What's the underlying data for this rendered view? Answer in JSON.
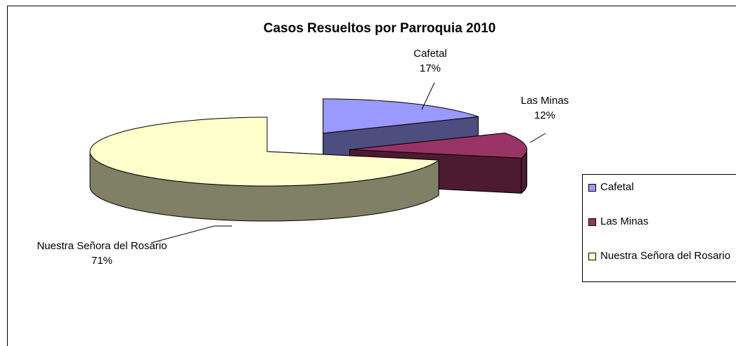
{
  "chart_data": {
    "type": "pie",
    "title": "Casos Resueltos por Parroquia 2010",
    "categories": [
      "Cafetal",
      "Las Minas",
      "Nuestra Señora del Rosario"
    ],
    "values": [
      17,
      12,
      71
    ],
    "value_labels": [
      "17%",
      "12%",
      "71%"
    ],
    "colors": [
      "#9999ff",
      "#993366",
      "#ffffcc"
    ],
    "legend": "right"
  }
}
